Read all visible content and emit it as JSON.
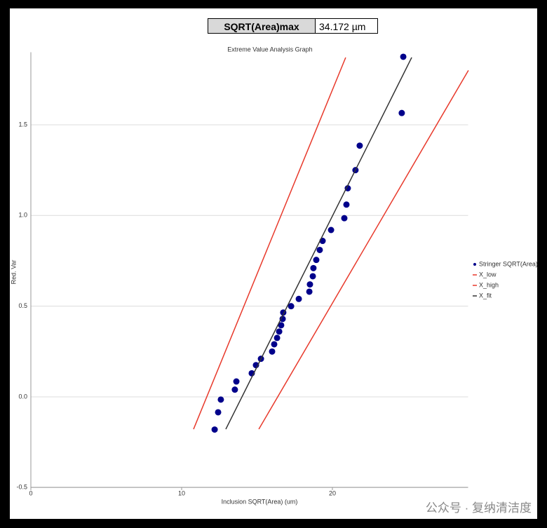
{
  "header": {
    "label": "SQRT(Area)max",
    "value": "34.172 µm"
  },
  "watermark": "公众号 · 复纳清洁度",
  "chart_data": {
    "type": "scatter",
    "title": "Extreme Value Analysis Graph",
    "x_label": "Inclusion SQRT(Area) (um)",
    "y_label": "Red. Var",
    "xlim": [
      0,
      29
    ],
    "ylim": [
      -0.5,
      1.9
    ],
    "xticks": [
      0,
      10,
      20
    ],
    "yticks": [
      -0.5,
      {
        "value": 0,
        "label": "0.0"
      },
      0.5,
      {
        "value": 1,
        "label": "1.0"
      },
      1.5
    ],
    "grid": true,
    "legend": "right",
    "series": [
      {
        "name": "Stringer SQRT(Area)",
        "type": "scatter",
        "color": "#00008b",
        "x": [
          12.19,
          12.42,
          12.6,
          13.53,
          13.63,
          14.65,
          14.93,
          15.26,
          16.0,
          16.14,
          16.33,
          16.47,
          16.6,
          16.7,
          16.74,
          17.26,
          17.77,
          18.47,
          18.51,
          18.7,
          18.74,
          18.93,
          19.16,
          19.35,
          19.91,
          20.79,
          20.93,
          21.02,
          21.53,
          21.81,
          24.6,
          24.7
        ],
        "values": [
          -0.18,
          -0.085,
          -0.015,
          0.04,
          0.085,
          0.13,
          0.175,
          0.21,
          0.25,
          0.29,
          0.325,
          0.36,
          0.395,
          0.43,
          0.465,
          0.5,
          0.54,
          0.58,
          0.62,
          0.665,
          0.71,
          0.755,
          0.81,
          0.86,
          0.92,
          0.985,
          1.06,
          1.15,
          1.25,
          1.385,
          1.565,
          1.875
        ]
      },
      {
        "name": "X_low",
        "type": "line",
        "color": "#e8392b",
        "x": [
          10.79,
          20.88
        ],
        "values": [
          -0.178,
          1.871
        ]
      },
      {
        "name": "X_high",
        "type": "line",
        "color": "#e8392b",
        "x": [
          15.12,
          29.02
        ],
        "values": [
          -0.178,
          1.8
        ]
      },
      {
        "name": "X_fit",
        "type": "line",
        "color": "#333333",
        "x": [
          12.93,
          25.26
        ],
        "values": [
          -0.178,
          1.871
        ]
      }
    ]
  }
}
